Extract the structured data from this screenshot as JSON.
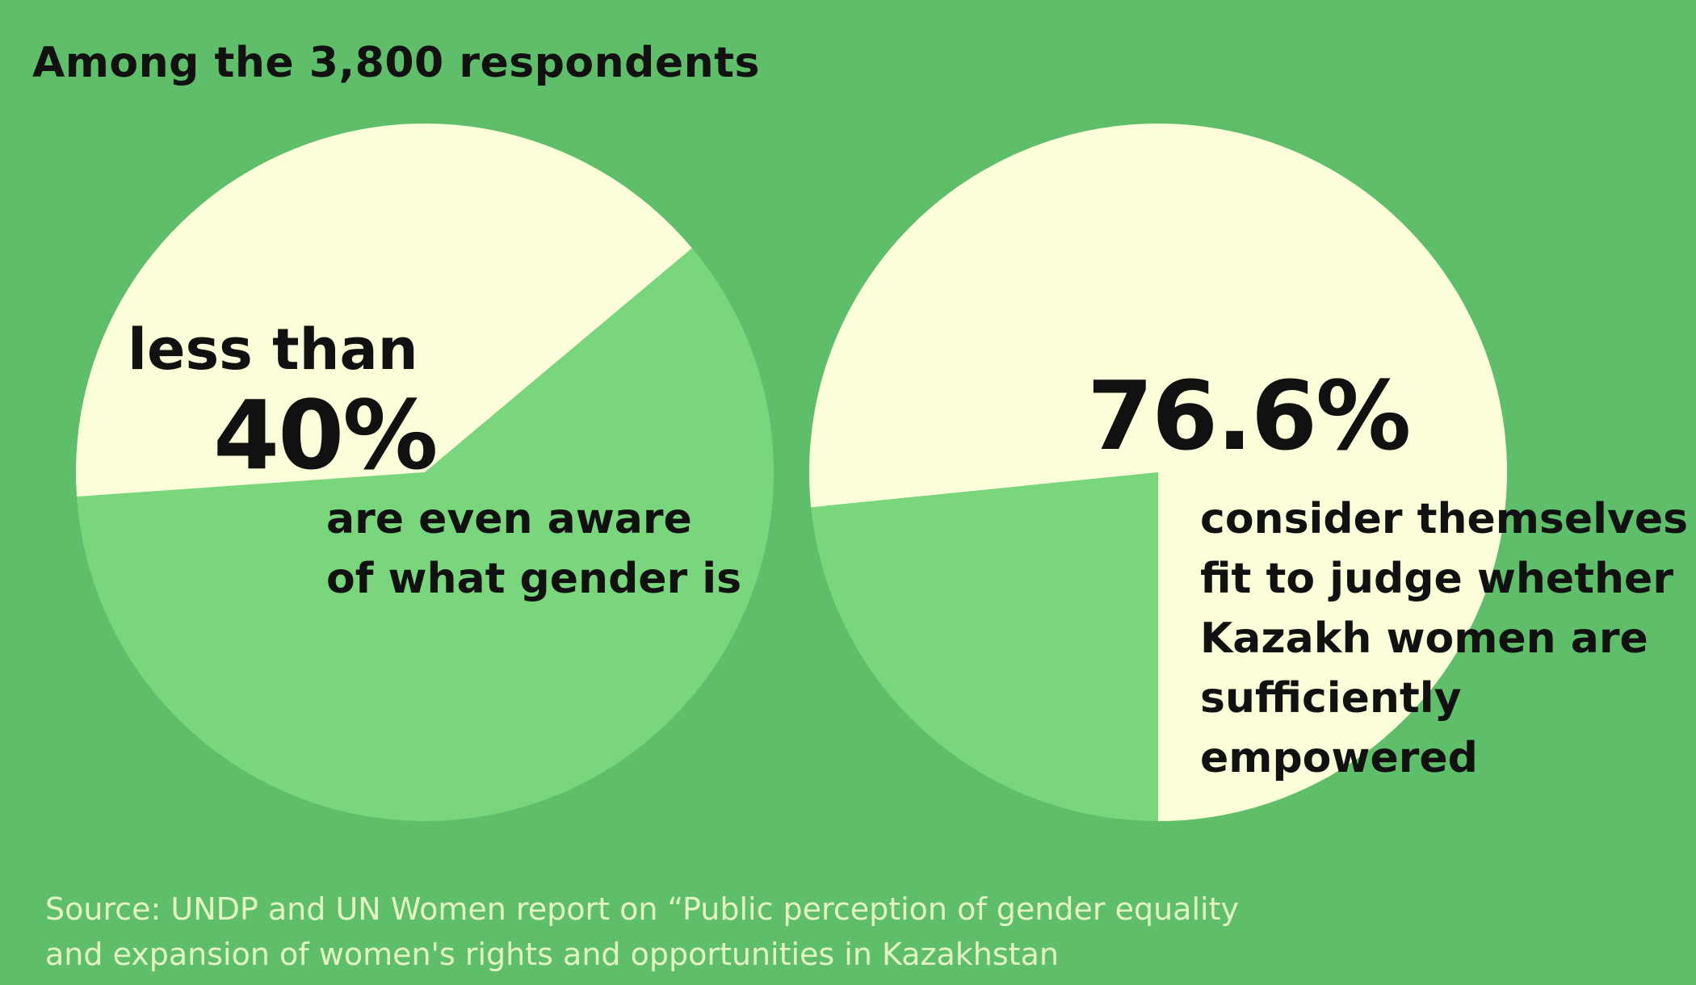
{
  "title": "Among the 3,800 respondents",
  "colors": {
    "background": "#5fbe6a",
    "slice_highlight": "#fbfed8",
    "slice_rest": "#7ad67d",
    "text": "#111111",
    "source_text": "#e3f4c4"
  },
  "chart_data": [
    {
      "type": "pie",
      "slices": [
        {
          "value": 40,
          "role": "highlight"
        },
        {
          "value": 60,
          "role": "rest"
        }
      ],
      "label_prefix": "less than",
      "value_label": "40%",
      "description_lines": [
        "are even aware",
        "of what gender is"
      ]
    },
    {
      "type": "pie",
      "slices": [
        {
          "value": 76.6,
          "role": "highlight"
        },
        {
          "value": 23.4,
          "role": "rest"
        }
      ],
      "value_label": "76.6%",
      "description_lines": [
        "consider themselves",
        "fit to judge whether",
        "Kazakh women are",
        "sufficiently",
        "empowered"
      ]
    }
  ],
  "source_lines": [
    "Source: UNDP and UN Women report on “Public perception of gender equality",
    "and expansion of women's rights and opportunities in Kazakhstan"
  ]
}
